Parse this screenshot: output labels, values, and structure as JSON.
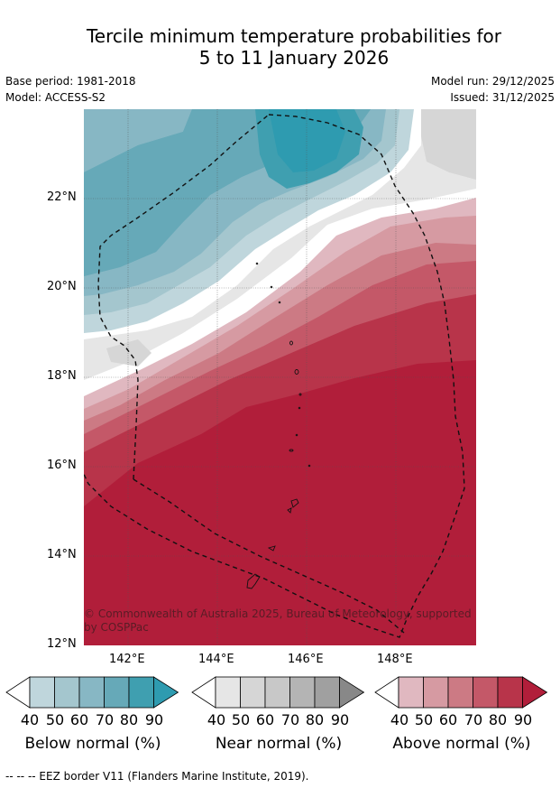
{
  "title": {
    "line1": "Tercile minimum temperature probabilities for",
    "line2": "5 to 11 January 2026"
  },
  "meta": {
    "base_period": "Base period: 1981-2018",
    "model": "Model: ACCESS-S2",
    "model_run": "Model run: 29/12/2025",
    "issued": "Issued: 31/12/2025"
  },
  "map": {
    "lat_labels": [
      "22°N",
      "20°N",
      "18°N",
      "16°N",
      "14°N",
      "12°N"
    ],
    "lon_labels": [
      "142°E",
      "144°E",
      "146°E",
      "148°E"
    ],
    "copyright": "© Commonwealth of Australia 2025, Bureau of Meteorology, supported by COSPPac",
    "copyright_line1": "© Commonwealth of Australia 2025, Bureau of Meteorology, supported",
    "copyright_line2": "by COSPPac"
  },
  "legend": {
    "tick_values": [
      "40",
      "50",
      "60",
      "70",
      "80",
      "90"
    ],
    "below": {
      "label": "Below normal (%)",
      "colors": [
        "#ffffff",
        "#bfd6dc",
        "#a4c6ce",
        "#87b7c4",
        "#66a9b8",
        "#3f9fb0",
        "#2e9bb0"
      ]
    },
    "near": {
      "label": "Near normal (%)",
      "colors": [
        "#ffffff",
        "#e6e6e6",
        "#d6d6d6",
        "#c8c8c8",
        "#b4b4b4",
        "#a0a0a0",
        "#888888"
      ]
    },
    "above": {
      "label": "Above normal (%)",
      "colors": [
        "#ffffff",
        "#e0b8c0",
        "#d69aa2",
        "#cc7a84",
        "#c45868",
        "#b8344a",
        "#b11e3a"
      ]
    }
  },
  "footnote": "--  --  -- EEZ border V11 (Flanders Marine Institute, 2019)."
}
